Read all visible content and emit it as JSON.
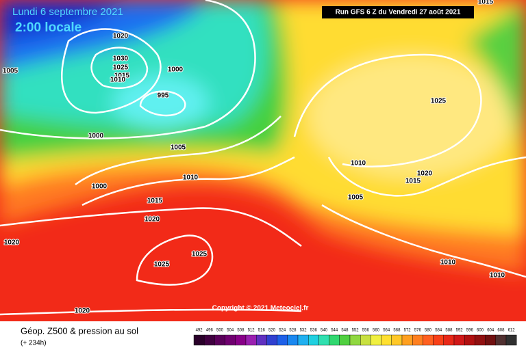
{
  "header": {
    "date": "Lundi 6 septembre 2021",
    "time": "2:00 locale",
    "run": "Run GFS 6 Z du Vendredi 27 août 2021"
  },
  "isobar_labels": [
    1020,
    1030,
    1025,
    1015,
    1010,
    1005,
    1000,
    995,
    1000,
    1005,
    1010,
    1000,
    1015,
    1020,
    1020,
    1025,
    1025,
    1020,
    1025,
    1010,
    1015,
    1020,
    1005,
    1010,
    1010,
    1015
  ],
  "copyright": "Copyright © 2021 Meteociel.fr",
  "footer": {
    "title": "Géop. Z500 & pression au sol",
    "lead": "(+ 234h)"
  },
  "legend": {
    "ticks": [
      492,
      496,
      500,
      504,
      508,
      512,
      516,
      520,
      524,
      528,
      532,
      536,
      540,
      544,
      548,
      552,
      556,
      560,
      564,
      568,
      572,
      576,
      580,
      584,
      588,
      592,
      596,
      600,
      604,
      608,
      612
    ]
  }
}
